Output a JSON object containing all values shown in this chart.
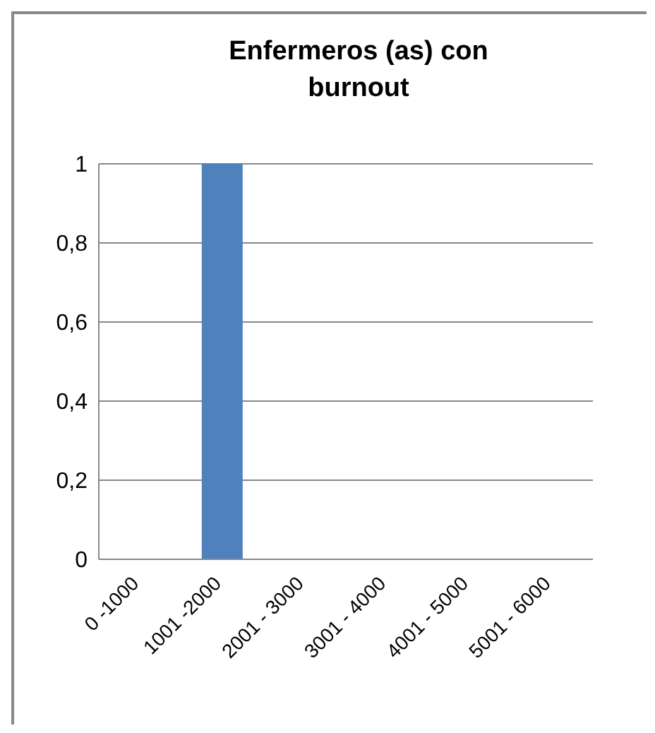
{
  "chart_data": {
    "type": "bar",
    "title": "Enfermeros (as) con burnout",
    "categories": [
      "0 -1000",
      "1001 -2000",
      "2001 - 3000",
      "3001 - 4000",
      "4001 - 5000",
      "5001 - 6000"
    ],
    "values": [
      0,
      1,
      0,
      0,
      0,
      0
    ],
    "color": "#4f81bd",
    "ylim": [
      0,
      1
    ],
    "yticks": [
      0,
      {
        "value": 0.2,
        "label": "0,2"
      },
      {
        "value": 0.4,
        "label": "0,4"
      },
      {
        "value": 0.6,
        "label": "0,6"
      },
      {
        "value": 0.8,
        "label": "0,8"
      },
      1
    ],
    "grid": "y",
    "legend": false
  }
}
